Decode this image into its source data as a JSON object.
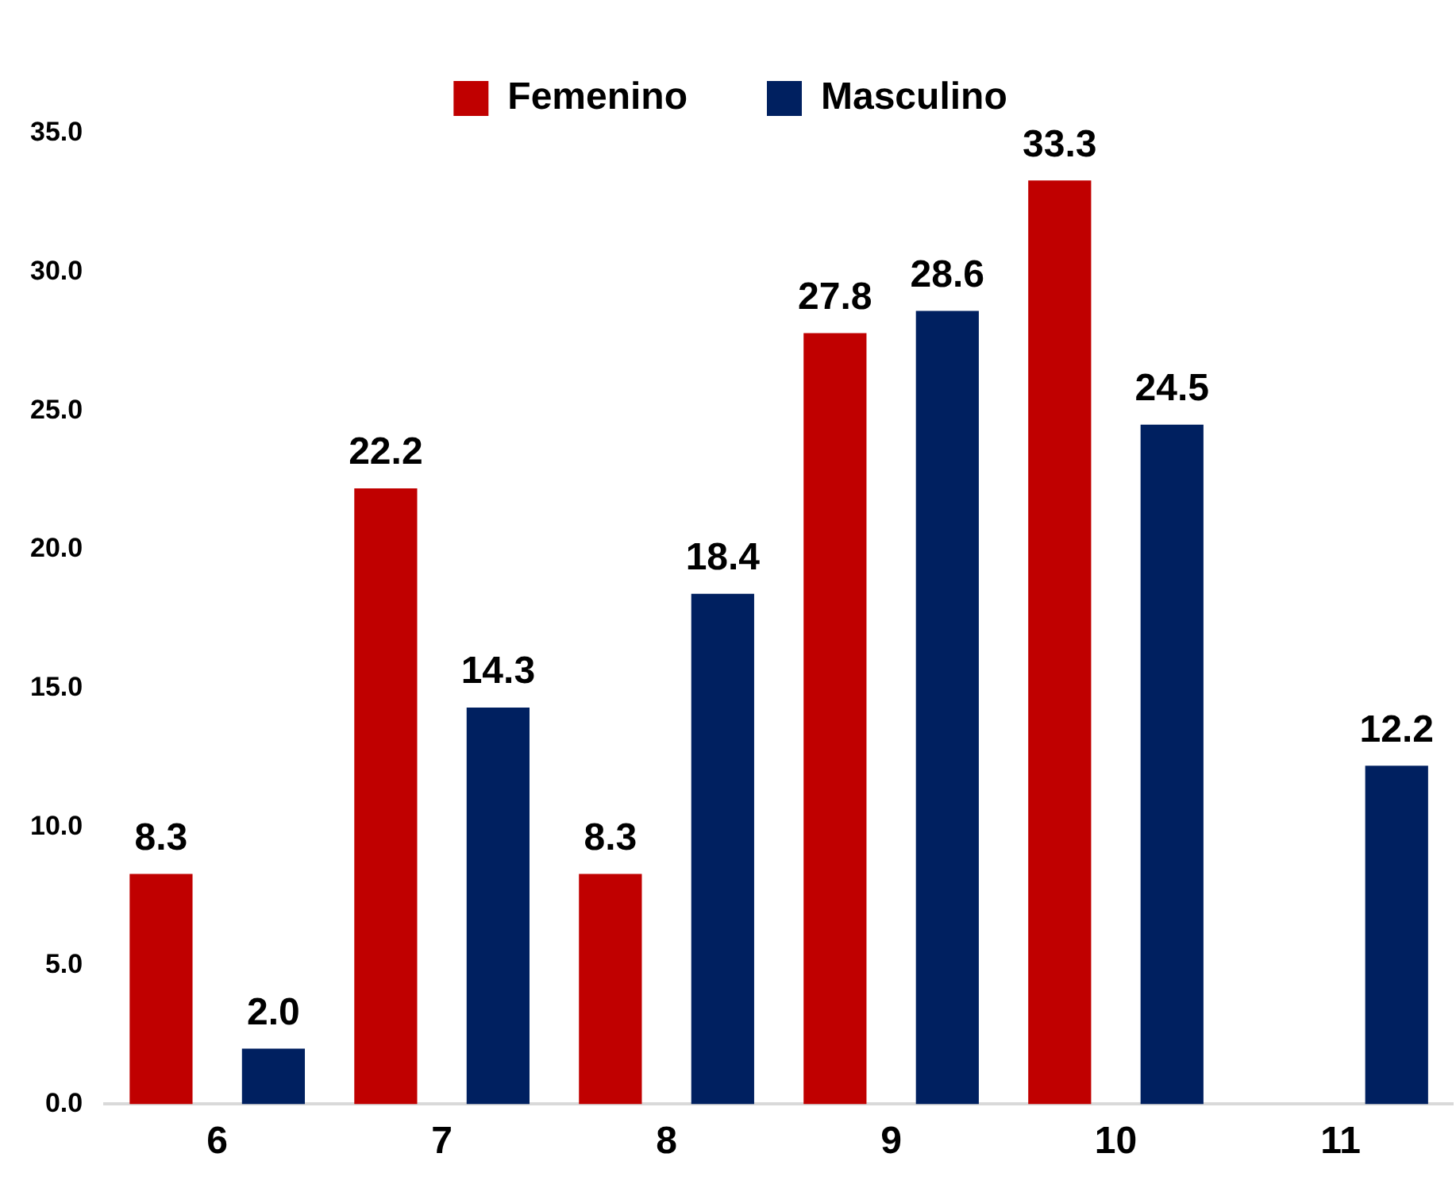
{
  "chart_data": {
    "type": "bar",
    "categories": [
      "6",
      "7",
      "8",
      "9",
      "10",
      "11"
    ],
    "series": [
      {
        "name": "Femenino",
        "color": "#c00000",
        "values": [
          8.3,
          22.2,
          8.3,
          27.8,
          33.3,
          null
        ],
        "value_labels": [
          "8.3",
          "22.2",
          "8.3",
          "27.8",
          "33.3",
          null
        ]
      },
      {
        "name": "Masculino",
        "color": "#002060",
        "values": [
          2.0,
          14.3,
          18.4,
          28.6,
          24.5,
          12.2
        ],
        "value_labels": [
          "2.0",
          "14.3",
          "18.4",
          "28.6",
          "24.5",
          "12.2"
        ]
      }
    ],
    "ylim": [
      0,
      35
    ],
    "yticks": [
      {
        "value": 0,
        "label": "0.0"
      },
      {
        "value": 5,
        "label": "5.0"
      },
      {
        "value": 10,
        "label": "10.0"
      },
      {
        "value": 15,
        "label": "15.0"
      },
      {
        "value": 20,
        "label": "20.0"
      },
      {
        "value": 25,
        "label": "25.0"
      },
      {
        "value": 30,
        "label": "30.0"
      },
      {
        "value": 35,
        "label": "35.0"
      }
    ],
    "grid": false,
    "legend": "top"
  }
}
